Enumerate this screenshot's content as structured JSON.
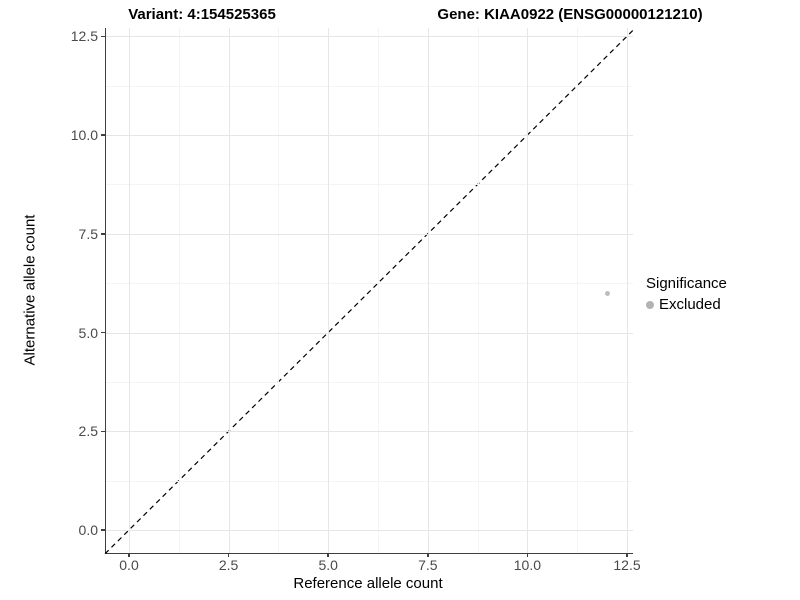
{
  "titles": {
    "variant": "Variant: 4:154525365",
    "gene": "Gene: KIAA0922 (ENSG00000121210)"
  },
  "axes": {
    "x_label": "Reference allele count",
    "y_label": "Alternative allele count"
  },
  "legend": {
    "title": "Significance",
    "items": [
      {
        "label": "Excluded",
        "color": "#b3b3b3"
      }
    ]
  },
  "colors": {
    "point": "#bdbdbd",
    "axis_line": "#3f3f3f",
    "major_grid": "#e6e6e6",
    "minor_grid": "#f4f4f4",
    "reference_line": "#000000"
  },
  "chart_data": {
    "type": "scatter",
    "title_left": "Variant: 4:154525365",
    "title_right": "Gene: KIAA0922 (ENSG00000121210)",
    "xlabel": "Reference allele count",
    "ylabel": "Alternative allele count",
    "xlim": [
      -0.6,
      12.7
    ],
    "ylim": [
      -0.6,
      12.7
    ],
    "xticks": [
      0,
      2.5,
      5,
      7.5,
      10,
      12.5
    ],
    "yticks": [
      0,
      2.5,
      5,
      7.5,
      10,
      12.5
    ],
    "x_tick_labels": [
      "0.0",
      "2.5",
      "5.0",
      "7.5",
      "10.0",
      "12.5"
    ],
    "y_tick_labels": [
      "0.0",
      "2.5",
      "5.0",
      "7.5",
      "10.0",
      "12.5"
    ],
    "x_minor": [
      1.25,
      3.75,
      6.25,
      8.75,
      11.25
    ],
    "y_minor": [
      1.25,
      3.75,
      6.25,
      8.75,
      11.25
    ],
    "grid": true,
    "legend_position": "right",
    "series": [
      {
        "name": "Excluded",
        "color": "#bdbdbd",
        "points": [
          {
            "x": 12,
            "y": 6
          }
        ]
      }
    ],
    "reference_line": {
      "kind": "identity",
      "style": "dashed",
      "color": "#000000"
    }
  }
}
